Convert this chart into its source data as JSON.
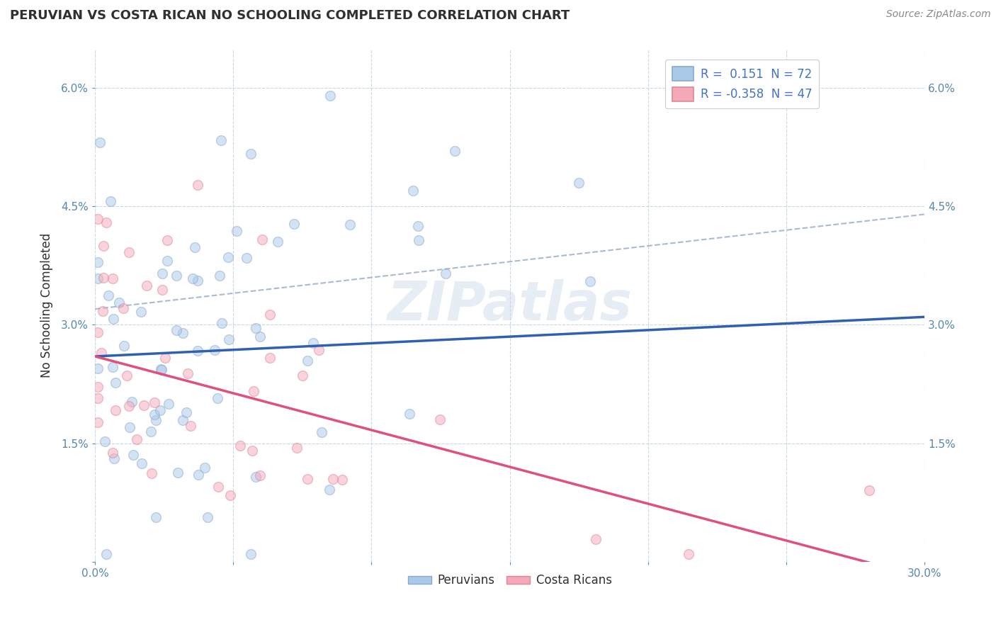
{
  "title": "PERUVIAN VS COSTA RICAN NO SCHOOLING COMPLETED CORRELATION CHART",
  "source": "Source: ZipAtlas.com",
  "ylabel": "No Schooling Completed",
  "xlim": [
    0.0,
    0.3
  ],
  "ylim": [
    0.0,
    0.065
  ],
  "xticks": [
    0.0,
    0.05,
    0.1,
    0.15,
    0.2,
    0.25,
    0.3
  ],
  "xtick_labels": [
    "0.0%",
    "",
    "",
    "",
    "",
    "",
    "30.0%"
  ],
  "yticks": [
    0.0,
    0.015,
    0.03,
    0.045,
    0.06
  ],
  "ytick_labels": [
    "",
    "1.5%",
    "3.0%",
    "4.5%",
    "6.0%"
  ],
  "peruvian_color": "#aac8e8",
  "costa_rican_color": "#f4a8b8",
  "peruvian_line_color": "#3060b0",
  "costa_rican_line_color": "#e0507a",
  "dashed_line_color": "#aabbd0",
  "R_peruvian": 0.151,
  "N_peruvian": 72,
  "R_costa_rican": -0.358,
  "N_costa_rican": 47,
  "watermark": "ZIPatlas",
  "legend_peruvians": "Peruvians",
  "legend_costa_ricans": "Costa Ricans",
  "background_color": "#ffffff",
  "grid_color": "#c8d8e4",
  "title_color": "#303030",
  "axis_label_color": "#303030",
  "tick_color": "#5588aa",
  "legend_text_color": "#4472c4",
  "source_color": "#888888",
  "marker_size": 100,
  "marker_alpha": 0.5,
  "marker_linewidth": 1.0,
  "marker_edge_color_peruvian": "#88aacc",
  "marker_edge_color_costa_rican": "#dd8898",
  "peru_trend_start_x": 0.0,
  "peru_trend_start_y": 0.026,
  "peru_trend_end_x": 0.3,
  "peru_trend_end_y": 0.031,
  "cr_trend_start_x": 0.0,
  "cr_trend_start_y": 0.026,
  "cr_trend_end_x": 0.3,
  "cr_trend_end_y": -0.002,
  "dash_trend_start_x": 0.0,
  "dash_trend_start_y": 0.032,
  "dash_trend_end_x": 0.3,
  "dash_trend_end_y": 0.044
}
